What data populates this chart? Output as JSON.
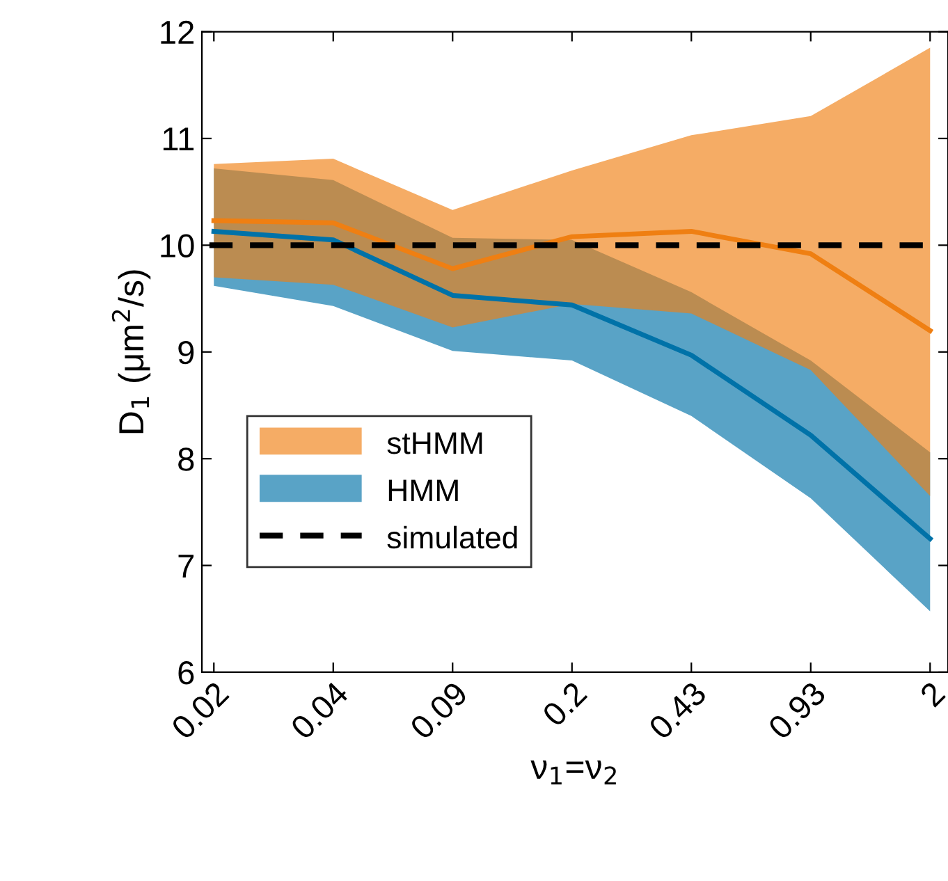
{
  "chart_data": {
    "type": "line",
    "xlabel": "ν$_{1}$=ν$_{2}$",
    "ylabel": "D$_{1}$ (μm$^{2}$/s)",
    "categories": [
      "0.02",
      "0.04",
      "0.09",
      "0.2",
      "0.43",
      "0.93",
      "2"
    ],
    "series": [
      {
        "name": "stHMM",
        "color": "#ef7f12",
        "values": [
          10.23,
          10.21,
          9.78,
          10.08,
          10.13,
          9.92,
          9.2
        ],
        "lower": [
          9.7,
          9.63,
          9.23,
          9.45,
          9.36,
          8.83,
          7.65
        ],
        "upper": [
          10.76,
          10.81,
          10.33,
          10.7,
          11.03,
          11.21,
          11.85
        ]
      },
      {
        "name": "HMM",
        "color": "#0072a8",
        "values": [
          10.13,
          10.05,
          9.53,
          9.44,
          8.97,
          8.22,
          7.25
        ],
        "lower": [
          9.62,
          9.43,
          9.01,
          8.92,
          8.4,
          7.63,
          6.57
        ],
        "upper": [
          10.72,
          10.61,
          10.07,
          10.05,
          9.56,
          8.92,
          8.06
        ]
      }
    ],
    "ref_lines": [
      {
        "axis": "y",
        "value": 10,
        "label": "simulated",
        "color": "#000000",
        "line_style": "dashed"
      }
    ],
    "ylim": [
      6,
      12
    ],
    "yticks": [
      6,
      7,
      8,
      9,
      10,
      11,
      12
    ],
    "grid": false,
    "legend": "bottom left"
  }
}
